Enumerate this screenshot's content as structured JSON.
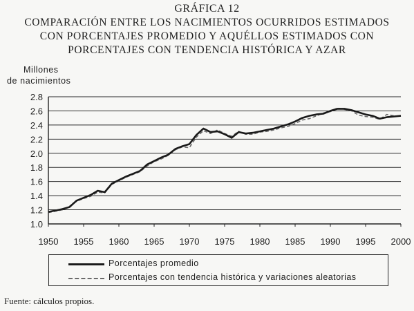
{
  "figure": {
    "heading": "GRÁFICA 12",
    "subtitle_lines": [
      "COMPARACIÓN ENTRE LOS NACIMIENTOS OCURRIDOS ESTIMADOS",
      "CON PORCENTAJES PROMEDIO Y AQUÉLLOS ESTIMADOS CON",
      "PORCENTAJES CON TENDENCIA HISTÓRICA Y AZAR"
    ],
    "source": "Fuente: cálculos propios."
  },
  "chart_data": {
    "type": "line",
    "ylabel_lines": [
      "Millones",
      "de nacimientos"
    ],
    "xlabel": "",
    "xlim": [
      1950,
      2000
    ],
    "ylim": [
      1.0,
      2.8
    ],
    "x_ticks": [
      1950,
      1955,
      1960,
      1965,
      1970,
      1975,
      1980,
      1985,
      1990,
      1995,
      2000
    ],
    "y_ticks": [
      1.0,
      1.2,
      1.4,
      1.6,
      1.8,
      2.0,
      2.2,
      2.4,
      2.6,
      2.8
    ],
    "grid": "horizontal",
    "legend_position": "bottom",
    "x": [
      1950,
      1951,
      1952,
      1953,
      1954,
      1955,
      1956,
      1957,
      1958,
      1959,
      1960,
      1961,
      1962,
      1963,
      1964,
      1965,
      1966,
      1967,
      1968,
      1969,
      1970,
      1971,
      1972,
      1973,
      1974,
      1975,
      1976,
      1977,
      1978,
      1979,
      1980,
      1981,
      1982,
      1983,
      1984,
      1985,
      1986,
      1987,
      1988,
      1989,
      1990,
      1991,
      1992,
      1993,
      1994,
      1995,
      1996,
      1997,
      1998,
      1999,
      2000
    ],
    "series": [
      {
        "name": "Porcentajes promedio",
        "style": "solid",
        "color": "#1a1a1a",
        "values": [
          1.17,
          1.19,
          1.21,
          1.24,
          1.33,
          1.37,
          1.41,
          1.47,
          1.45,
          1.57,
          1.62,
          1.67,
          1.71,
          1.75,
          1.84,
          1.89,
          1.94,
          1.98,
          2.06,
          2.1,
          2.13,
          2.26,
          2.35,
          2.3,
          2.31,
          2.27,
          2.22,
          2.3,
          2.28,
          2.29,
          2.31,
          2.33,
          2.35,
          2.38,
          2.41,
          2.45,
          2.5,
          2.53,
          2.55,
          2.56,
          2.6,
          2.63,
          2.63,
          2.61,
          2.58,
          2.55,
          2.53,
          2.49,
          2.51,
          2.52,
          2.53
        ]
      },
      {
        "name": "Porcentajes con tendencia histórica y variaciones aleatorias",
        "style": "dashed",
        "color": "#6a6a6a",
        "values": [
          1.16,
          1.18,
          1.2,
          1.25,
          1.32,
          1.36,
          1.39,
          1.45,
          1.44,
          1.56,
          1.61,
          1.66,
          1.7,
          1.74,
          1.82,
          1.88,
          1.92,
          1.97,
          2.05,
          2.09,
          2.08,
          2.23,
          2.32,
          2.28,
          2.33,
          2.28,
          2.24,
          2.31,
          2.27,
          2.27,
          2.3,
          2.31,
          2.33,
          2.36,
          2.38,
          2.42,
          2.47,
          2.49,
          2.53,
          2.57,
          2.59,
          2.64,
          2.62,
          2.6,
          2.54,
          2.52,
          2.51,
          2.48,
          2.55,
          2.53,
          2.52
        ]
      }
    ]
  }
}
